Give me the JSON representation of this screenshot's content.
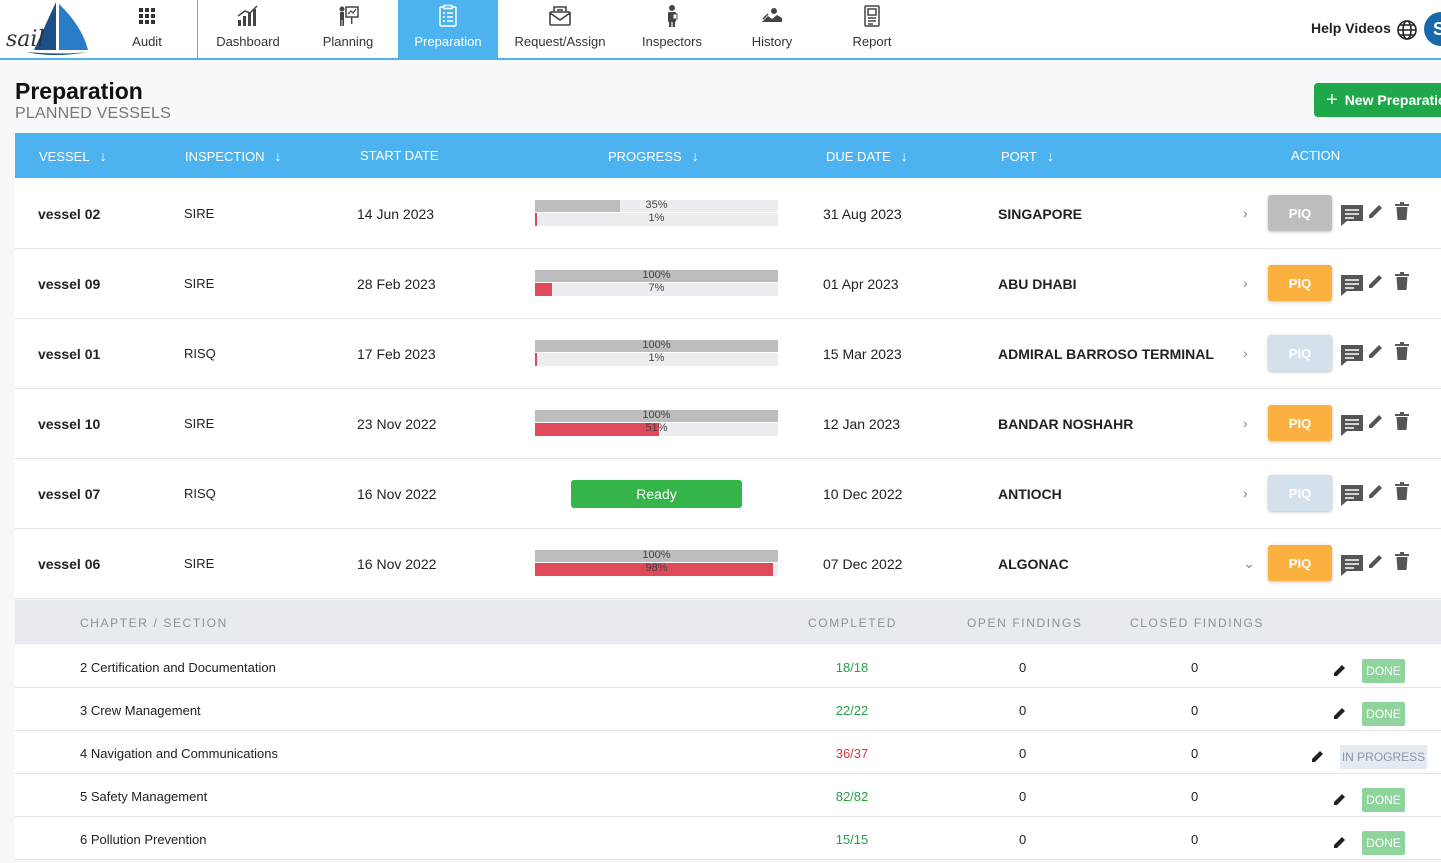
{
  "brand": {
    "logo_text": "sail",
    "logo_alt": "sail-boat-logo"
  },
  "nav": [
    {
      "label": "Audit",
      "icon": "grid-icon"
    },
    {
      "label": "Dashboard",
      "icon": "bar-chart-icon"
    },
    {
      "label": "Planning",
      "icon": "presentation-icon"
    },
    {
      "label": "Preparation",
      "icon": "checklist-icon",
      "active": true
    },
    {
      "label": "Request/Assign",
      "icon": "envelope-icon"
    },
    {
      "label": "Inspectors",
      "icon": "inspector-icon"
    },
    {
      "label": "History",
      "icon": "history-icon"
    },
    {
      "label": "Report",
      "icon": "report-icon"
    }
  ],
  "header": {
    "help_label": "Help Videos",
    "avatar_initial": "S"
  },
  "page": {
    "title": "Preparation",
    "subtitle": "PLANNED VESSELS",
    "new_button": "New Preparation"
  },
  "table": {
    "columns": {
      "vessel": "VESSEL",
      "inspection": "INSPECTION",
      "start": "START DATE",
      "progress": "PROGRESS",
      "due": "DUE DATE",
      "port": "PORT",
      "action": "ACTION"
    },
    "piq_label": "PIQ",
    "rows": [
      {
        "vessel": "vessel 02",
        "inspection": "SIRE",
        "start": "14 Jun 2023",
        "top_pct": 35,
        "top_label": "35%",
        "bot_pct": 1,
        "bot_label": "1%",
        "due": "31 Aug 2023",
        "port": "SINGAPORE",
        "piq": "grey",
        "expanded": false
      },
      {
        "vessel": "vessel 09",
        "inspection": "SIRE",
        "start": "28 Feb 2023",
        "top_pct": 100,
        "top_label": "100%",
        "bot_pct": 7,
        "bot_label": "7%",
        "due": "01 Apr 2023",
        "port": "ABU DHABI",
        "piq": "orange",
        "expanded": false
      },
      {
        "vessel": "vessel 01",
        "inspection": "RISQ",
        "start": "17 Feb 2023",
        "top_pct": 100,
        "top_label": "100%",
        "bot_pct": 1,
        "bot_label": "1%",
        "due": "15 Mar 2023",
        "port": "ADMIRAL BARROSO TERMINAL",
        "piq": "light",
        "expanded": false
      },
      {
        "vessel": "vessel 10",
        "inspection": "SIRE",
        "start": "23 Nov 2022",
        "top_pct": 100,
        "top_label": "100%",
        "bot_pct": 51,
        "bot_label": "51%",
        "due": "12 Jan 2023",
        "port": "BANDAR NOSHAHR",
        "piq": "orange",
        "expanded": false
      },
      {
        "vessel": "vessel 07",
        "inspection": "RISQ",
        "start": "16 Nov 2022",
        "ready_label": "Ready",
        "due": "10 Dec 2022",
        "port": "ANTIOCH",
        "piq": "light",
        "expanded": false
      },
      {
        "vessel": "vessel 06",
        "inspection": "SIRE",
        "start": "16 Nov 2022",
        "top_pct": 100,
        "top_label": "100%",
        "bot_pct": 98,
        "bot_label": "98%",
        "due": "07 Dec 2022",
        "port": "ALGONAC",
        "piq": "orange",
        "expanded": true
      }
    ]
  },
  "sections": {
    "columns": {
      "chapter": "CHAPTER / SECTION",
      "completed": "COMPLETED",
      "open": "OPEN FINDINGS",
      "closed": "CLOSED FINDINGS"
    },
    "rows": [
      {
        "name": "2 Certification and Documentation",
        "completed": "18/18",
        "done": true,
        "open": "0",
        "closed": "0",
        "status": "DONE"
      },
      {
        "name": "3 Crew Management",
        "completed": "22/22",
        "done": true,
        "open": "0",
        "closed": "0",
        "status": "DONE"
      },
      {
        "name": "4 Navigation and Communications",
        "completed": "36/37",
        "done": false,
        "open": "0",
        "closed": "0",
        "status": "IN PROGRESS"
      },
      {
        "name": "5 Safety Management",
        "completed": "82/82",
        "done": true,
        "open": "0",
        "closed": "0",
        "status": "DONE"
      },
      {
        "name": "6 Pollution Prevention",
        "completed": "15/15",
        "done": true,
        "open": "0",
        "closed": "0",
        "status": "DONE"
      }
    ]
  },
  "colors": {
    "accent": "#4db3f0",
    "primary_green": "#1fa84a",
    "bar_red": "#e0495a",
    "piq_orange": "#fbb040"
  }
}
